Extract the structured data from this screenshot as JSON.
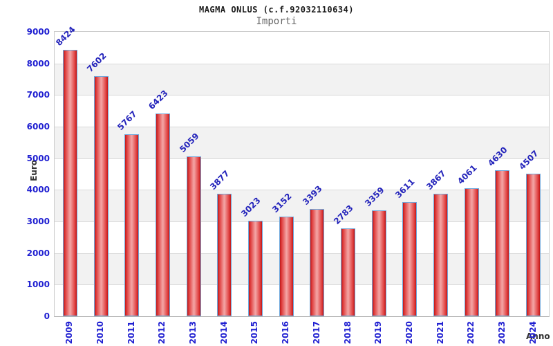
{
  "chart_data": {
    "type": "bar",
    "title": "MAGMA ONLUS (c.f.92032110634)",
    "subtitle": "Importi",
    "xlabel": "Anno",
    "ylabel": "Euro",
    "categories": [
      "2009",
      "2010",
      "2011",
      "2012",
      "2013",
      "2014",
      "2015",
      "2016",
      "2017",
      "2018",
      "2019",
      "2020",
      "2021",
      "2022",
      "2023",
      "2024"
    ],
    "values": [
      8424,
      7602,
      5767,
      6423,
      5059,
      3877,
      3023,
      3152,
      3393,
      2783,
      3359,
      3611,
      3867,
      4061,
      4630,
      4507
    ],
    "ylim": [
      0,
      9000
    ],
    "ytick_step": 1000,
    "grid": true,
    "band_alternate": true,
    "legend": "none",
    "colors": {
      "bar_edge": "#c01818",
      "bar_body": "#e04040",
      "bar_highlight": "#f3a2a2",
      "bar_border": "#6fa8dc",
      "tick_label": "#1f1fd1",
      "value_label": "#2424bb",
      "grid_line": "#d9d9d9",
      "band_fill": "#f2f2f2",
      "title_color": "#1a1a1a",
      "subtitle_color": "#666666",
      "axis_title_color": "#333333"
    }
  }
}
